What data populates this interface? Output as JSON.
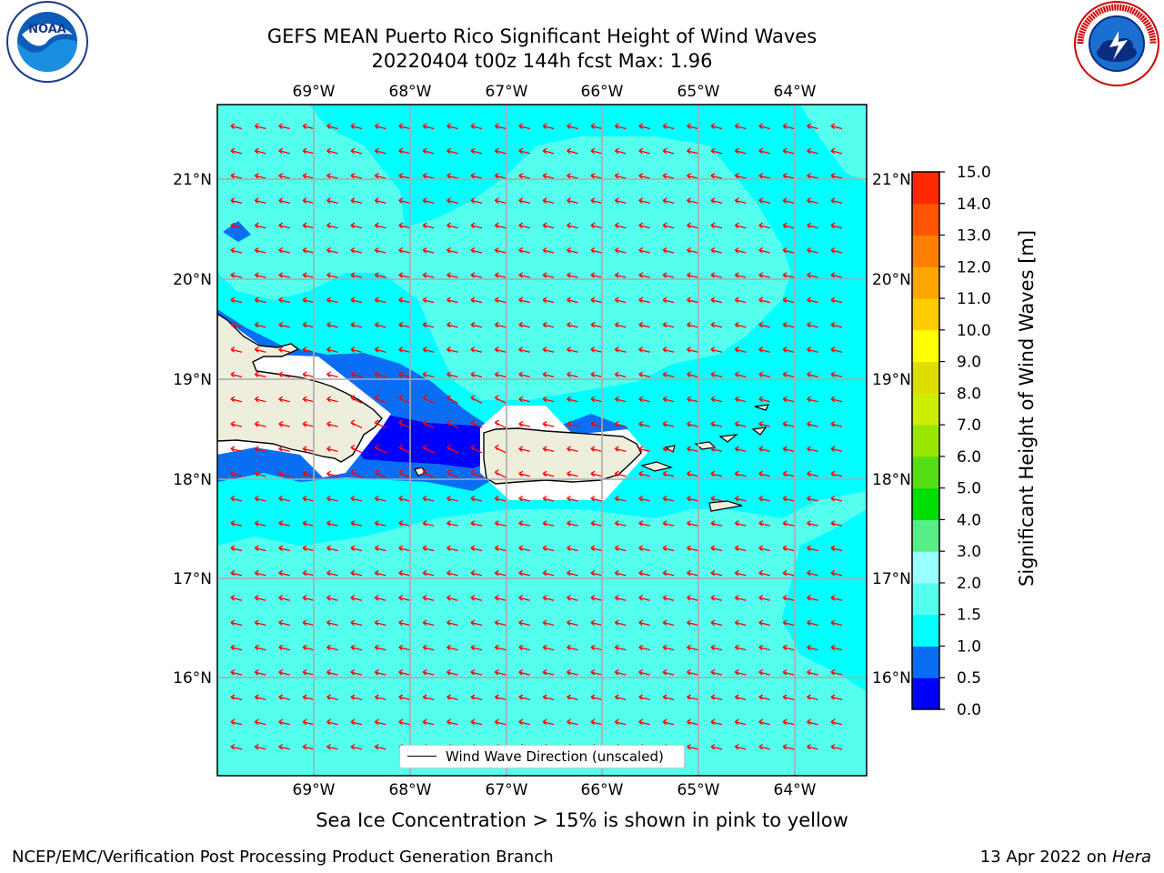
{
  "title": {
    "line1": "GEFS MEAN Puerto Rico Significant Height of Wind Waves",
    "line2": "20220404 t00z 144h fcst   Max: 1.96"
  },
  "axes": {
    "lon_labels": [
      "69°W",
      "68°W",
      "67°W",
      "66°W",
      "65°W",
      "64°W"
    ],
    "lat_labels": [
      "21°N",
      "20°N",
      "19°N",
      "18°N",
      "17°N",
      "16°N"
    ]
  },
  "legend": {
    "label": "Wind Wave Direction (unscaled)"
  },
  "colorbar": {
    "title": "Significant Height of Wind Waves [m]",
    "ticks": [
      "0.0",
      "0.5",
      "1.0",
      "1.5",
      "2.0",
      "3.0",
      "4.0",
      "5.0",
      "6.0",
      "7.0",
      "8.0",
      "9.0",
      "10.0",
      "11.0",
      "12.0",
      "13.0",
      "14.0",
      "15.0"
    ],
    "colors": [
      "#0000ff",
      "#0a6ef5",
      "#00ffff",
      "#55ffee",
      "#99ffff",
      "#55ee88",
      "#00dd00",
      "#55dd11",
      "#99e600",
      "#ccee00",
      "#dddd00",
      "#ffff00",
      "#ffcc00",
      "#ffa500",
      "#ff8000",
      "#ff5500",
      "#ff2800",
      "#ff0000"
    ]
  },
  "map": {
    "region": "Puerto Rico",
    "max_value": 1.96,
    "arrow_color": "#ff0000",
    "land_color": "#eeeedd",
    "ocean_colors": {
      "low": "#0000ff",
      "mid": "#0a6ef5",
      "base": "#00ffff",
      "high": "#55ffee"
    }
  },
  "ice_note": "Sea Ice Concentration > 15% is shown in pink to yellow",
  "footer": {
    "left": "NCEP/EMC/Verification Post Processing Product Generation Branch",
    "right_date": "13 Apr 2022 on ",
    "right_host": "Hera"
  },
  "logos": {
    "left": "NOAA",
    "right": "NATIONAL WEATHER SERVICE"
  }
}
